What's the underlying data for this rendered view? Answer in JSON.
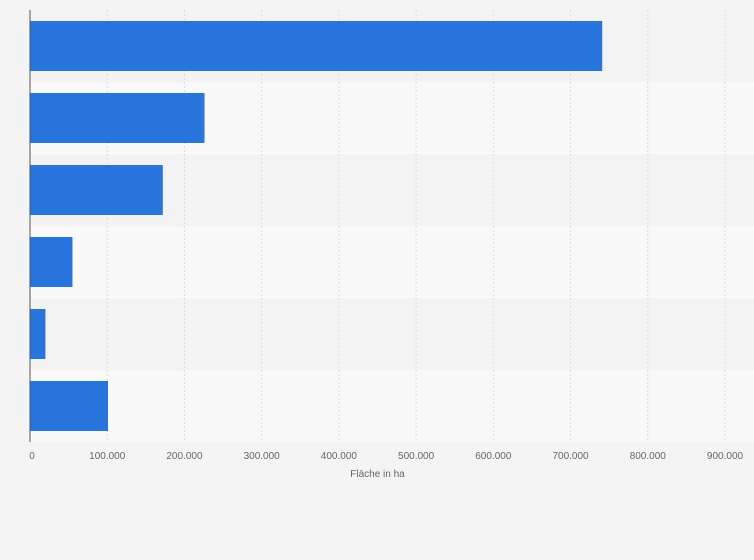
{
  "chart_data": {
    "type": "bar",
    "orientation": "horizontal",
    "categories": [
      "",
      "",
      "",
      "",
      "",
      ""
    ],
    "values": [
      741000,
      226000,
      172000,
      55000,
      20000,
      101000
    ],
    "xlabel": "Fläche in ha",
    "ylabel": "",
    "xlim": [
      0,
      900000
    ],
    "x_ticks": [
      0,
      100000,
      200000,
      300000,
      400000,
      500000,
      600000,
      700000,
      800000,
      900000
    ],
    "x_tick_labels": [
      "0",
      "100.000",
      "200.000",
      "300.000",
      "400.000",
      "500.000",
      "600.000",
      "700.000",
      "800.000",
      "900.000"
    ],
    "grid": "vertical dashed",
    "legend": "none",
    "colors": {
      "bar": "#2876dd",
      "background": "#f4f4f4",
      "band_light": "#f9f9f9",
      "band_dark": "#f3f3f3",
      "gridline": "#dcdcdc",
      "axis": "#555555",
      "text": "#666666"
    }
  }
}
